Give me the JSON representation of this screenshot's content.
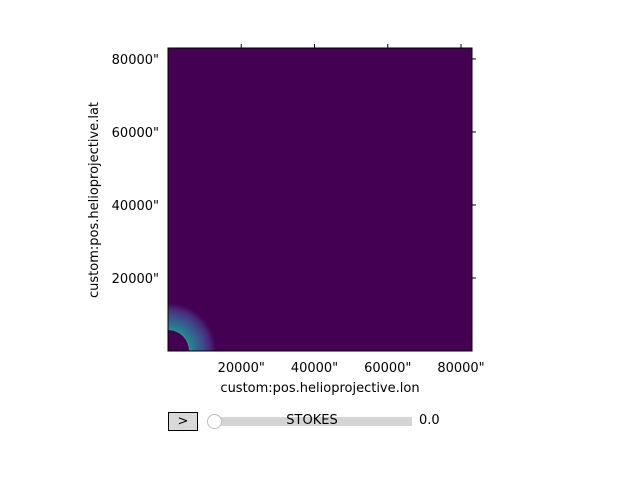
{
  "chart_data": {
    "type": "heatmap",
    "title": "",
    "xlabel": "custom:pos.helioprojective.lon",
    "ylabel": "custom:pos.helioprojective.lat",
    "x_unit": "arcsec",
    "y_unit": "arcsec",
    "xlim": [
      0,
      83000
    ],
    "ylim": [
      0,
      83000
    ],
    "xticks": [
      20000,
      40000,
      60000,
      80000
    ],
    "yticks": [
      20000,
      40000,
      60000,
      80000
    ],
    "xtick_labels": [
      "20000\"",
      "40000\"",
      "60000\"",
      "80000\""
    ],
    "ytick_labels": [
      "20000\"",
      "40000\"",
      "60000\"",
      "80000\""
    ],
    "colormap": "viridis",
    "features": {
      "bright_ring_radius": 5000,
      "occulted_disk_radius": 4800,
      "falloff_scale": 2500
    },
    "grid": false,
    "legend": "none"
  },
  "controls": {
    "play_label": ">",
    "slider_label": "STOKES",
    "slider_value": "0.0",
    "slider_fraction": 0.0
  },
  "colors": {
    "background_colormap_min": "#440154",
    "slider_track": "#d4d4d4",
    "button_face": "#d9d9d9"
  }
}
